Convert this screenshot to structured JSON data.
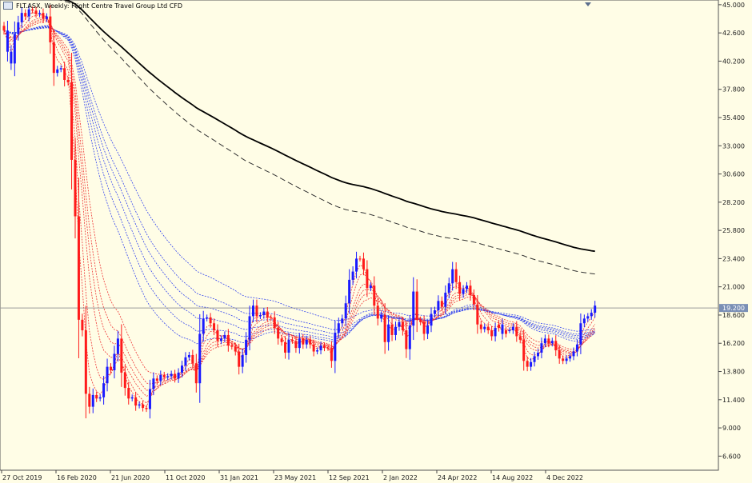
{
  "window": {
    "symbol": "FLT.ASX",
    "timeframe": "Weekly",
    "description": "Flight Centre Travel Group Ltd CFD",
    "title_text": "FLT.ASX, Weekly:  Flight Centre Travel Group Ltd CFD"
  },
  "colors": {
    "background": "#fffde6",
    "bull": "#1a1aff",
    "bear": "#ff1a1a",
    "ma_black": "#000000",
    "ma_dashed": "#333333",
    "ribbon_blue": "#3344ee",
    "ribbon_red": "#ee3333",
    "current_line": "#9a9a9a",
    "badge": "#7a8fb5"
  },
  "current_price": {
    "label": "19.200",
    "value": 19.2
  },
  "chart_data": {
    "type": "candlestick",
    "ylim": [
      5.4,
      45.4
    ],
    "y_ticks": [
      "45.000",
      "42.600",
      "40.200",
      "37.800",
      "35.400",
      "33.000",
      "30.600",
      "28.200",
      "25.800",
      "23.400",
      "21.000",
      "18.600",
      "16.200",
      "13.800",
      "11.400",
      "9.000",
      "6.600"
    ],
    "x_labels": [
      "27 Oct 2019",
      "16 Feb 2020",
      "21 Jun 2020",
      "11 Oct 2020",
      "31 Jan 2021",
      "23 May 2021",
      "12 Sep 2021",
      "2 Jan 2022",
      "24 Apr 2022",
      "14 Aug 2022",
      "4 Dec 2022"
    ],
    "close": [
      42.8,
      41.0,
      40.0,
      42.5,
      43.5,
      44.3,
      44.0,
      44.6,
      44.5,
      44.2,
      44.3,
      43.8,
      44.0,
      41.8,
      39.2,
      39.5,
      39.6,
      38.6,
      38.4,
      31.8,
      27.0,
      18.2,
      17.3,
      11.9,
      10.8,
      11.8,
      11.5,
      11.6,
      12.8,
      14.2,
      13.9,
      15.3,
      16.6,
      13.7,
      12.4,
      11.5,
      11.6,
      10.9,
      11.0,
      10.7,
      10.6,
      12.3,
      13.2,
      13.0,
      13.5,
      13.3,
      13.4,
      13.6,
      13.2,
      13.7,
      14.3,
      15.0,
      15.2,
      14.5,
      12.8,
      17.0,
      18.3,
      18.4,
      17.9,
      17.3,
      16.4,
      16.6,
      16.9,
      16.0,
      15.9,
      15.5,
      14.2,
      15.2,
      16.5,
      18.5,
      19.4,
      18.5,
      18.6,
      18.9,
      18.4,
      18.4,
      17.5,
      16.6,
      16.3,
      15.4,
      16.5,
      16.4,
      15.8,
      16.6,
      16.1,
      16.5,
      16.1,
      15.5,
      15.6,
      16.0,
      15.8,
      15.8,
      14.7,
      17.1,
      17.9,
      18.3,
      19.6,
      21.6,
      22.3,
      23.4,
      23.4,
      22.5,
      20.9,
      21.1,
      19.4,
      18.3,
      18.6,
      16.3,
      17.8,
      16.9,
      17.6,
      18.0,
      17.3,
      15.7,
      17.7,
      20.6,
      18.2,
      18.0,
      17.0,
      17.7,
      18.7,
      19.0,
      19.8,
      19.3,
      20.5,
      21.3,
      22.5,
      21.4,
      20.4,
      20.8,
      21.1,
      20.3,
      19.5,
      17.8,
      17.4,
      17.6,
      17.3,
      16.8,
      17.5,
      17.8,
      17.0,
      17.3,
      17.3,
      17.6,
      16.8,
      16.5,
      14.7,
      14.2,
      14.6,
      15.1,
      15.4,
      16.2,
      16.6,
      16.2,
      16.4,
      15.6,
      14.9,
      14.7,
      14.9,
      15.1,
      15.5,
      16.1,
      17.9,
      18.3,
      18.5,
      18.8,
      19.4
    ],
    "bull": [
      false,
      true,
      true,
      true,
      true,
      true,
      false,
      true,
      false,
      false,
      true,
      false,
      true,
      false,
      false,
      true,
      true,
      false,
      false,
      false,
      false,
      false,
      false,
      false,
      false,
      true,
      false,
      true,
      true,
      true,
      false,
      true,
      true,
      false,
      false,
      false,
      true,
      false,
      true,
      false,
      false,
      true,
      true,
      false,
      true,
      false,
      true,
      true,
      false,
      true,
      true,
      true,
      true,
      false,
      false,
      true,
      true,
      true,
      false,
      false,
      false,
      true,
      true,
      false,
      false,
      false,
      false,
      true,
      true,
      true,
      true,
      false,
      true,
      true,
      false,
      false,
      false,
      false,
      false,
      false,
      true,
      false,
      false,
      true,
      false,
      true,
      false,
      false,
      true,
      true,
      false,
      false,
      false,
      true,
      true,
      true,
      true,
      true,
      true,
      true,
      false,
      false,
      false,
      true,
      false,
      false,
      true,
      false,
      true,
      false,
      true,
      true,
      false,
      false,
      true,
      true,
      false,
      false,
      false,
      true,
      true,
      true,
      true,
      false,
      true,
      true,
      true,
      false,
      false,
      true,
      true,
      false,
      false,
      false,
      false,
      true,
      false,
      false,
      true,
      false,
      true,
      false,
      true,
      true,
      false,
      false,
      false,
      false,
      true,
      true,
      true,
      true,
      true,
      false,
      true,
      false,
      false,
      false,
      true,
      true,
      true,
      true,
      true,
      true,
      true,
      true,
      true
    ],
    "current_line": 19.2
  }
}
